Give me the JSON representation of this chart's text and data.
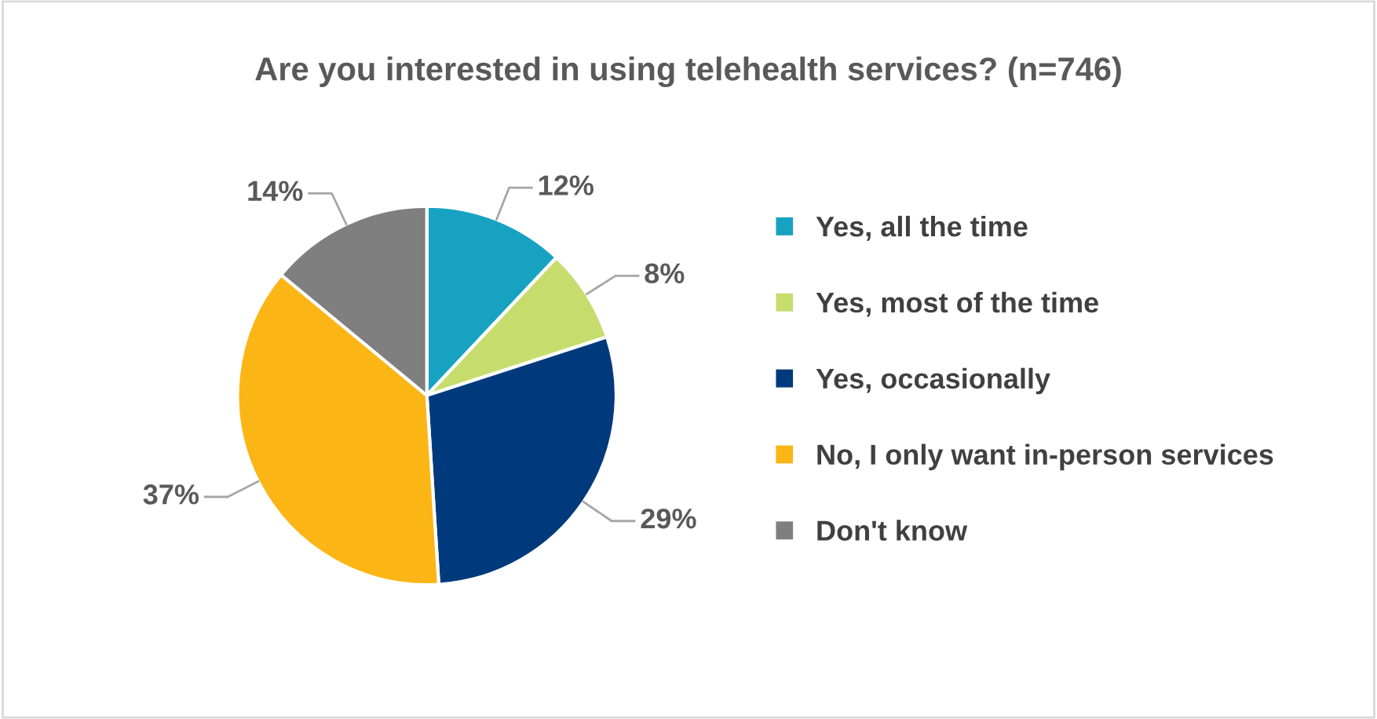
{
  "chart_data": {
    "type": "pie",
    "title": "Are you interested in using telehealth services? (n=746)",
    "categories": [
      "Yes, all the time",
      "Yes, most of the time",
      "Yes, occasionally",
      "No, I only want in-person services",
      "Don't know"
    ],
    "values": [
      12,
      8,
      29,
      37,
      14
    ],
    "colors": [
      "#17a2c2",
      "#c6dd6d",
      "#003a7d",
      "#fbb616",
      "#7f7f7f"
    ],
    "value_labels": [
      "12%",
      "8%",
      "29%",
      "37%",
      "14%"
    ],
    "legend": "right"
  }
}
